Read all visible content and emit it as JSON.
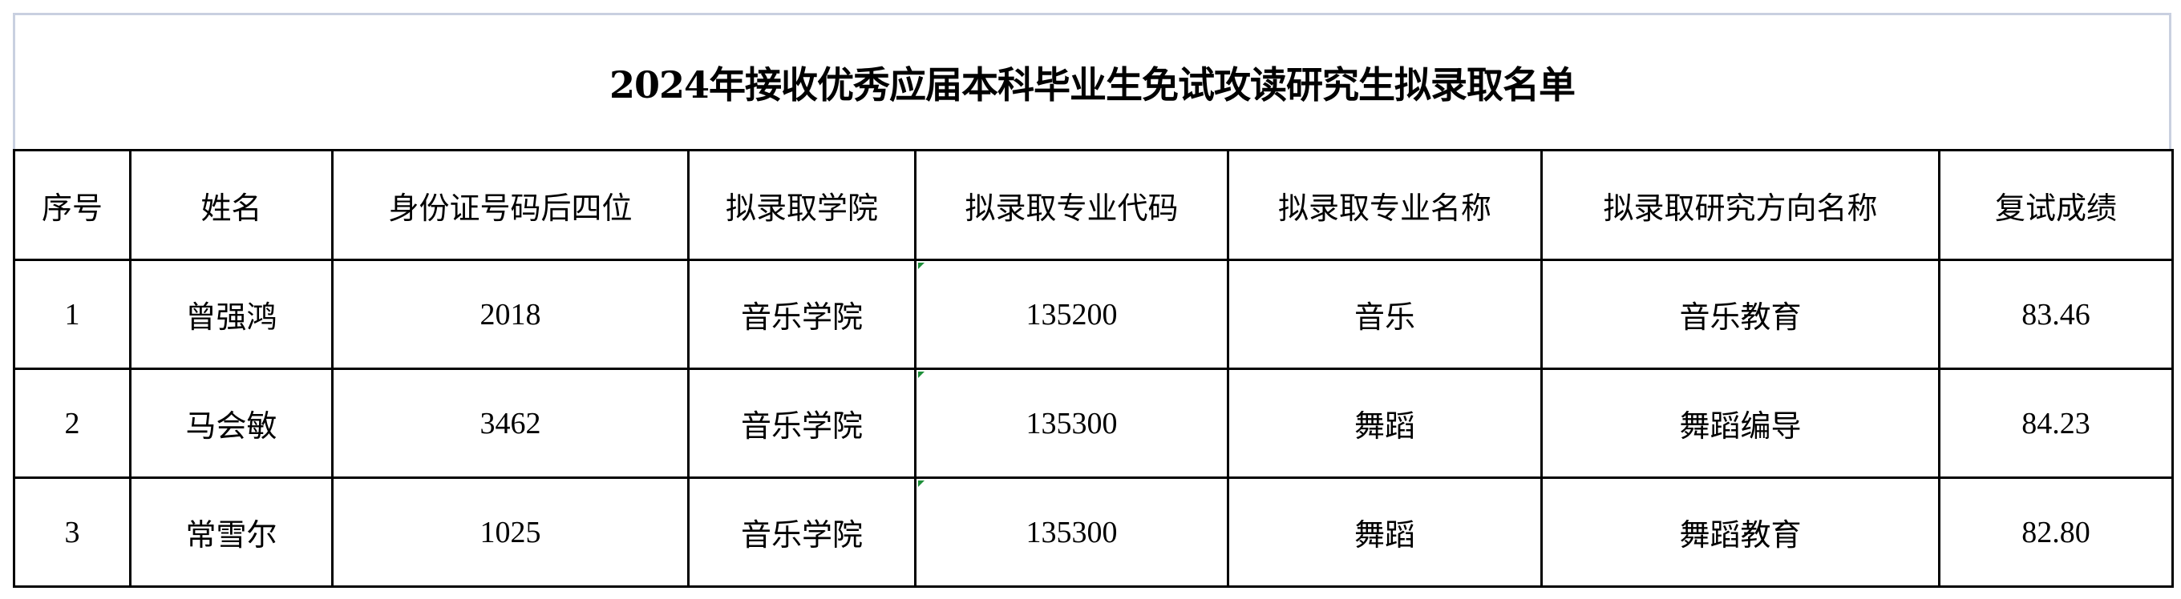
{
  "title": "2024年接收优秀应届本科毕业生免试攻读研究生拟录取名单",
  "columns": [
    "序号",
    "姓名",
    "身份证号码后四位",
    "拟录取学院",
    "拟录取专业代码",
    "拟录取专业名称",
    "拟录取研究方向名称",
    "复试成绩"
  ],
  "rows": [
    [
      "1",
      "曾强鸿",
      "2018",
      "音乐学院",
      "135200",
      "音乐",
      "音乐教育",
      "83.46"
    ],
    [
      "2",
      "马会敏",
      "3462",
      "音乐学院",
      "135300",
      "舞蹈",
      "舞蹈编导",
      "84.23"
    ],
    [
      "3",
      "常雪尔",
      "1025",
      "音乐学院",
      "135300",
      "舞蹈",
      "舞蹈教育",
      "82.80"
    ]
  ],
  "colors": {
    "border": "#000000",
    "title_border": "#c9d0e0",
    "cell_marker": "#1e8f3a"
  }
}
